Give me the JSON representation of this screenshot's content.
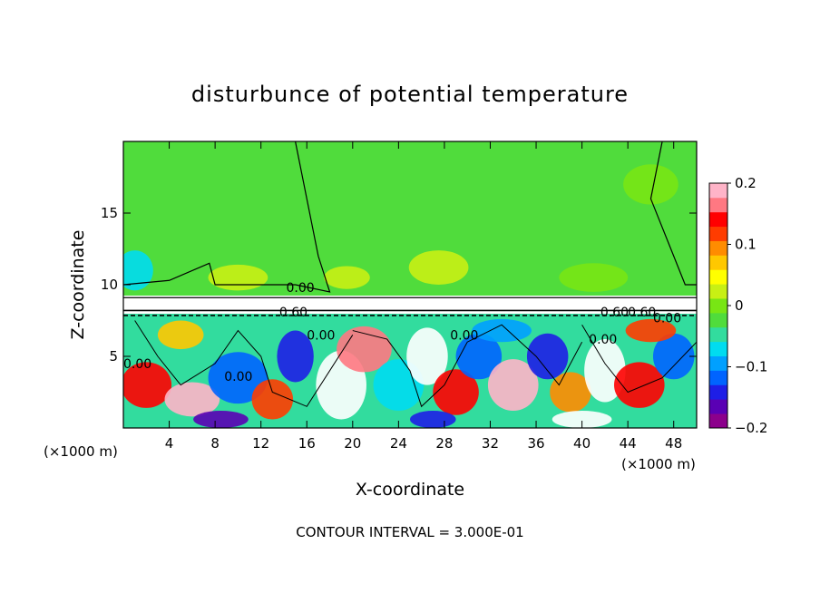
{
  "chart_data": {
    "type": "heatmap",
    "title": "disturbunce of potential temperature",
    "xlabel": "X-coordinate",
    "ylabel": "Z-coordinate",
    "x_unit_label": "(×1000 m)",
    "z_unit_label": "(×1000 m)",
    "xlim": [
      0,
      50
    ],
    "ylim": [
      0,
      20
    ],
    "x_ticks": [
      4,
      8,
      12,
      16,
      20,
      24,
      28,
      32,
      36,
      40,
      44,
      48
    ],
    "x_tick_labels": [
      "4",
      "8",
      "12",
      "16",
      "20",
      "24",
      "28",
      "32",
      "36",
      "40",
      "44",
      "48"
    ],
    "y_ticks": [
      5,
      10,
      15
    ],
    "y_tick_labels": [
      "5",
      "10",
      "15"
    ],
    "colorbar": {
      "min": -0.2,
      "max": 0.2,
      "tick_values": [
        0.2,
        0.1,
        0,
        -0.1,
        -0.2
      ],
      "tick_labels": [
        "0.2",
        "0.1",
        "0",
        "−0.1",
        "−0.2"
      ],
      "colors": [
        "#8c008c",
        "#5a00b4",
        "#1e1ee6",
        "#0064ff",
        "#00a0ff",
        "#00dcf0",
        "#32dc9e",
        "#50dc3c",
        "#78e614",
        "#c8f014",
        "#ffff00",
        "#ffc800",
        "#ff8c00",
        "#ff3c00",
        "#ff0000",
        "#ff7882",
        "#ffb4c8"
      ]
    },
    "contour_interval_text": "CONTOUR INTERVAL = 3.000E-01",
    "contour_labels": [
      {
        "text": "0.00",
        "x": 14.2,
        "z": 9.8
      },
      {
        "text": "0.60",
        "x": 13.6,
        "z": 8.1
      },
      {
        "text": "0.60",
        "x": 41.6,
        "z": 8.1
      },
      {
        "text": "0.60",
        "x": 44.0,
        "z": 8.1
      },
      {
        "text": "0.00",
        "x": 46.2,
        "z": 7.7
      },
      {
        "text": "0.00",
        "x": 16.0,
        "z": 6.5
      },
      {
        "text": "0.00",
        "x": 28.5,
        "z": 6.5
      },
      {
        "text": "0.00",
        "x": 40.6,
        "z": 6.2
      },
      {
        "text": "0.00",
        "x": 8.8,
        "z": 3.6
      },
      {
        "text": "0.00",
        "x": 0.0,
        "z": 4.5
      }
    ],
    "regions": {
      "upper_layer": {
        "z_range": [
          9.0,
          20.0
        ],
        "mean_value": 0.0,
        "description_value": 0.0
      },
      "inversion_band": {
        "z_range": [
          8.0,
          9.0
        ],
        "value": 0.6
      },
      "lower_turbulent_layer": {
        "z_range": [
          0.0,
          8.0
        ],
        "value_range": [
          -0.2,
          0.2
        ]
      }
    }
  }
}
